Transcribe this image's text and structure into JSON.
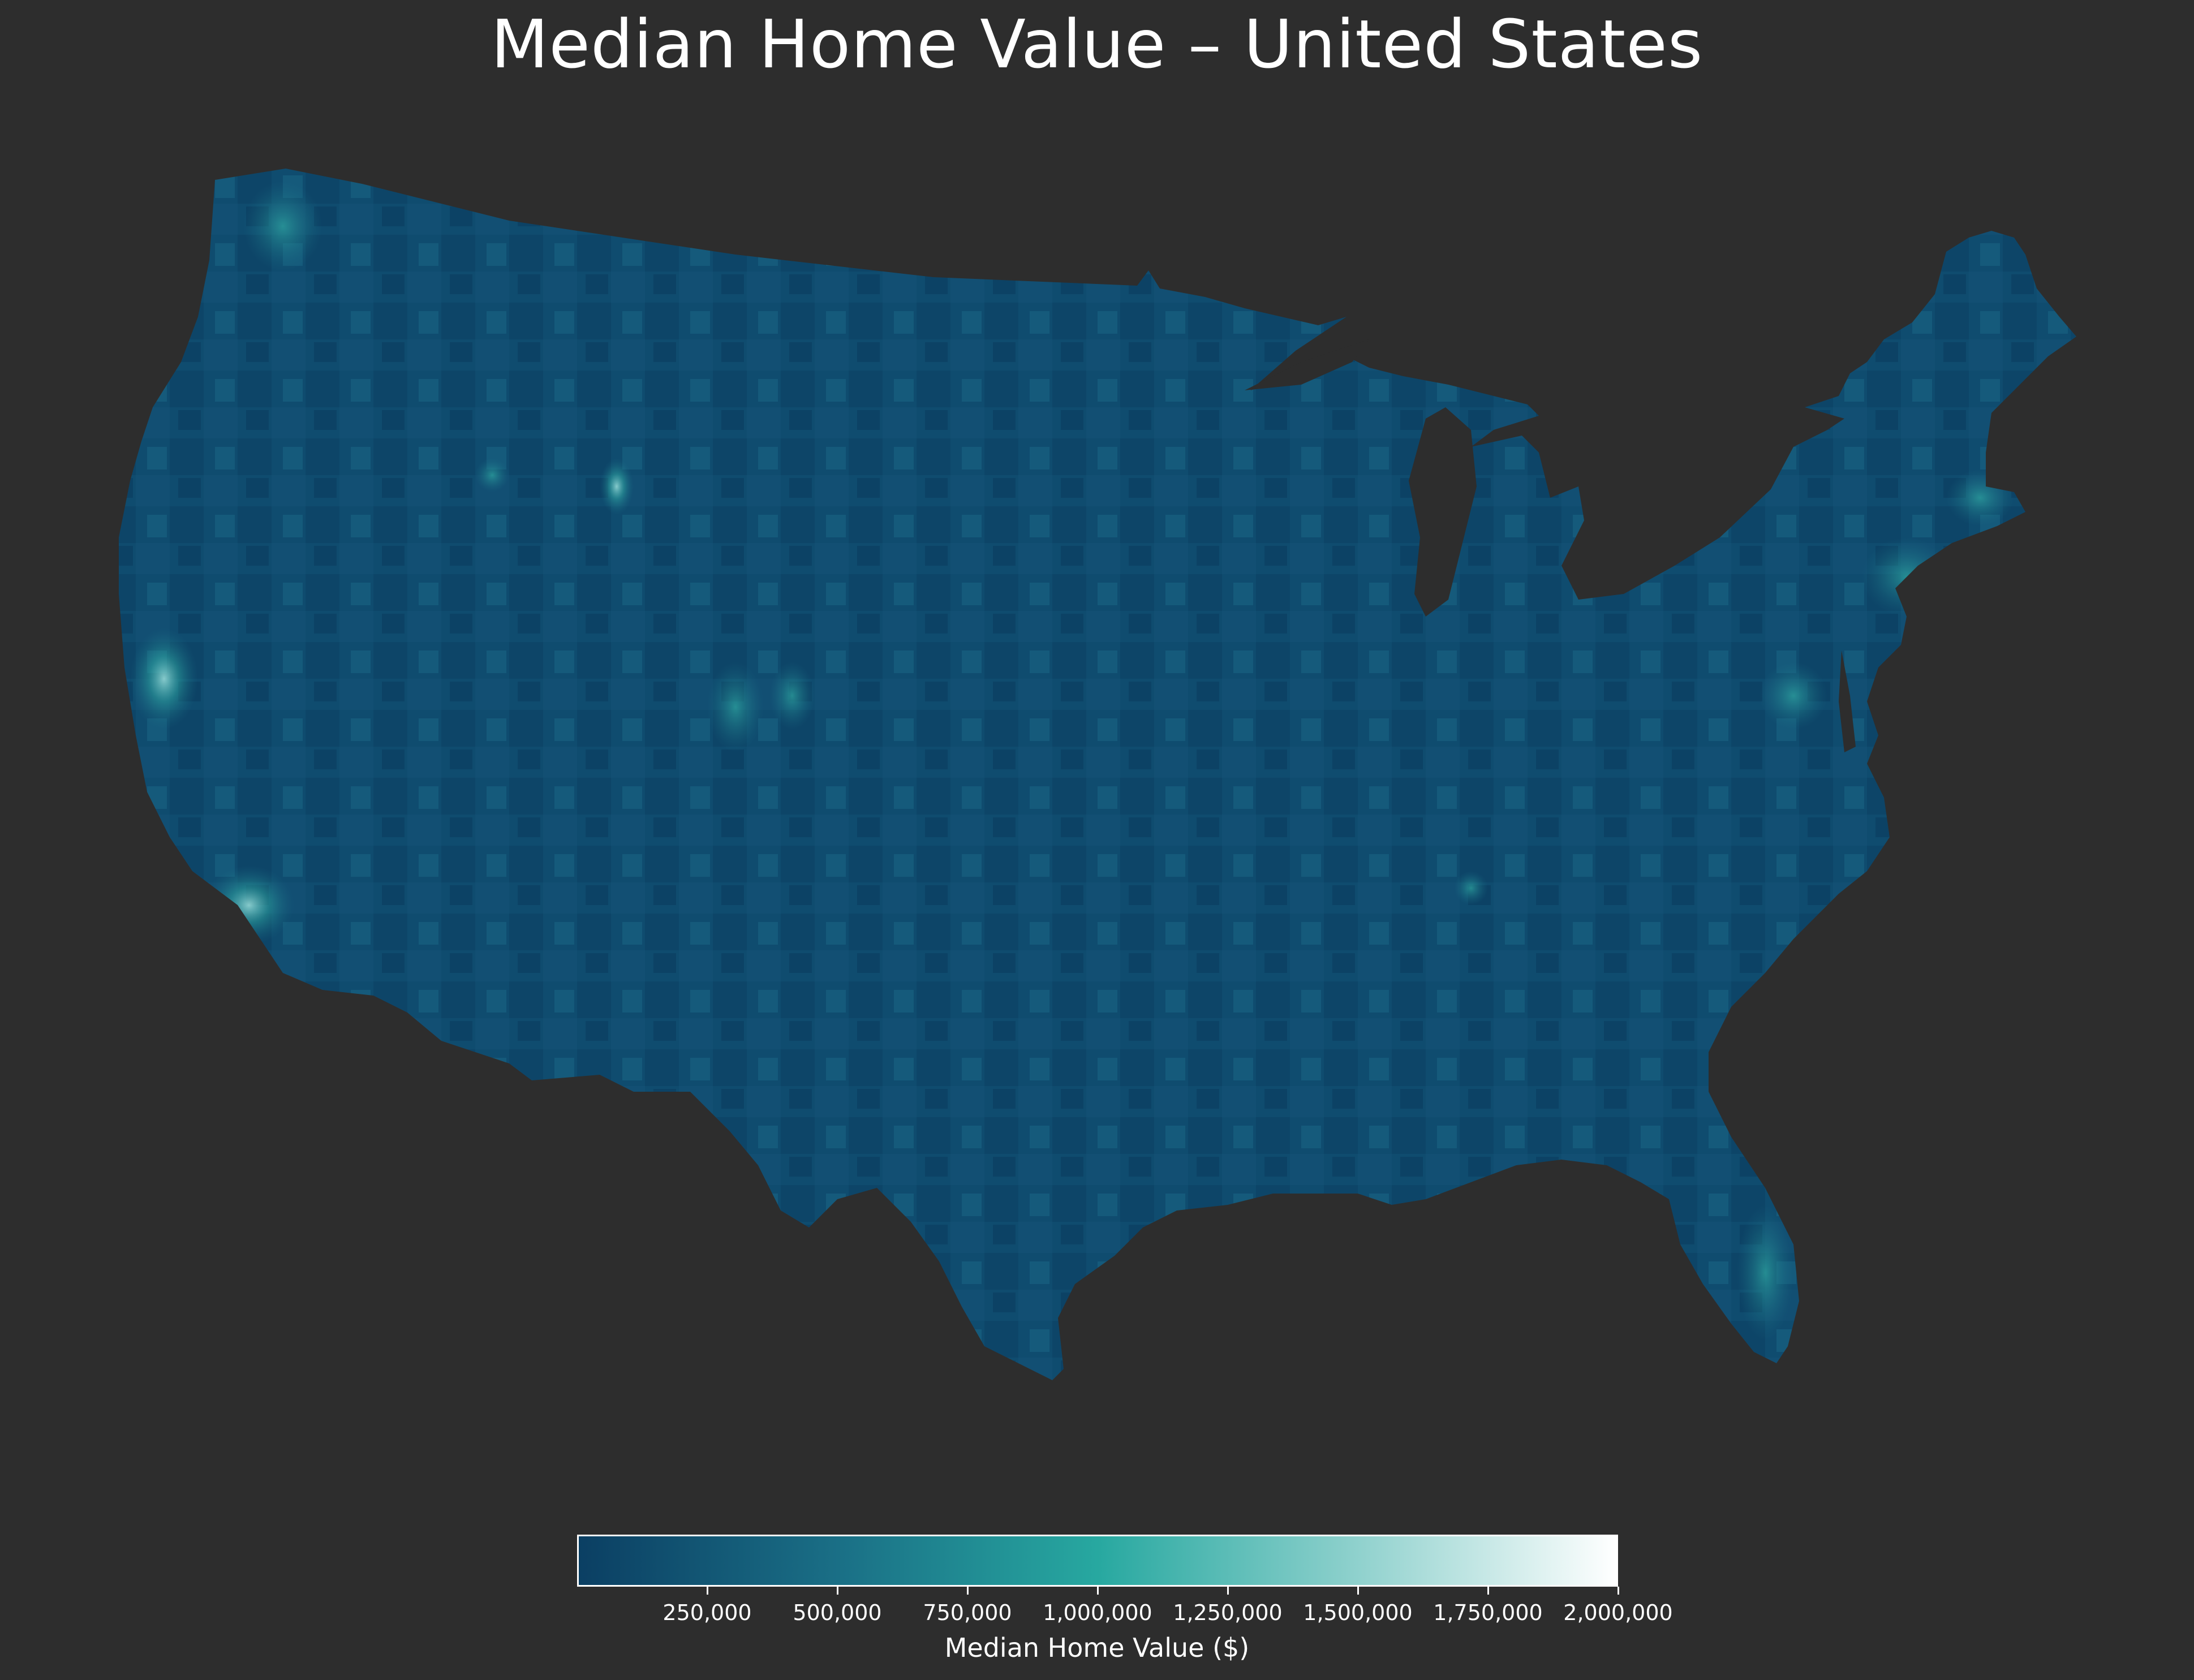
{
  "title": "Median Home Value – United States",
  "colors": {
    "background": "#2d2d2d",
    "ramp": [
      "#0b3f63",
      "#1a6f86",
      "#27a8a0",
      "#8fd1cd",
      "#ffffff"
    ]
  },
  "colorbar": {
    "label": "Median Home Value ($)",
    "min": 0,
    "max": 2000000,
    "ticks": [
      {
        "value": 250000,
        "label": "250,000"
      },
      {
        "value": 500000,
        "label": "500,000"
      },
      {
        "value": 750000,
        "label": "750,000"
      },
      {
        "value": 1000000,
        "label": "1,000,000"
      },
      {
        "value": 1250000,
        "label": "1,250,000"
      },
      {
        "value": 1500000,
        "label": "1,500,000"
      },
      {
        "value": 1750000,
        "label": "1,750,000"
      },
      {
        "value": 2000000,
        "label": "2,000,000"
      }
    ]
  }
}
